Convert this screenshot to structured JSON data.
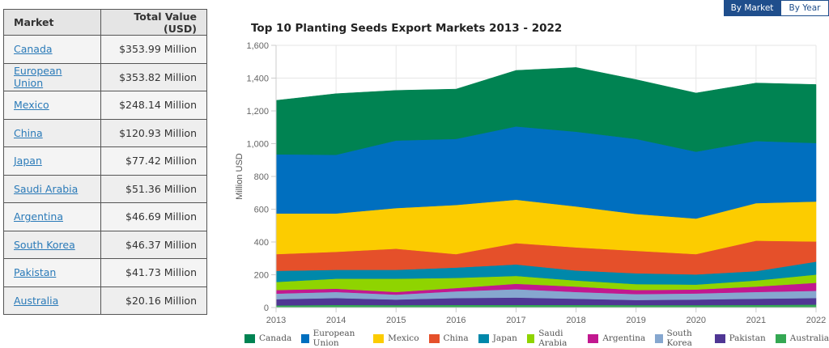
{
  "toggle": {
    "by_market": "By Market",
    "by_year": "By Year",
    "active": "By Market"
  },
  "table": {
    "headers": [
      "Market",
      "Total Value (USD)"
    ],
    "rows": [
      {
        "market": "Canada",
        "value": "$353.99 Million"
      },
      {
        "market": "European Union",
        "value": "$353.82 Million"
      },
      {
        "market": "Mexico",
        "value": "$248.14 Million"
      },
      {
        "market": "China",
        "value": "$120.93 Million"
      },
      {
        "market": "Japan",
        "value": "$77.42 Million"
      },
      {
        "market": "Saudi Arabia",
        "value": "$51.36 Million"
      },
      {
        "market": "Argentina",
        "value": "$46.69 Million"
      },
      {
        "market": "South Korea",
        "value": "$46.37 Million"
      },
      {
        "market": "Pakistan",
        "value": "$41.73 Million"
      },
      {
        "market": "Australia",
        "value": "$20.16 Million"
      }
    ]
  },
  "chart_data": {
    "type": "area",
    "stacked": true,
    "title": "Top 10 Planting Seeds Export Markets 2013 - 2022",
    "xlabel": "",
    "ylabel": "Million USD",
    "x": [
      2013,
      2014,
      2015,
      2016,
      2017,
      2018,
      2019,
      2020,
      2021,
      2022
    ],
    "x_tick_labels": [
      "2013",
      "2014",
      "2015",
      "2016",
      "2017",
      "2018",
      "2019",
      "2020",
      "2021",
      "2022"
    ],
    "ylim": [
      0,
      1600
    ],
    "y_ticks": [
      0,
      200,
      400,
      600,
      800,
      1000,
      1200,
      1400,
      1600
    ],
    "y_tick_labels": [
      "0",
      "200",
      "400",
      "600",
      "800",
      "1,000",
      "1,200",
      "1,400",
      "1,600"
    ],
    "grid": true,
    "legend_position": "bottom",
    "series": [
      {
        "name": "Australia",
        "color": "#34a853",
        "values": [
          13,
          16,
          15,
          16,
          16,
          16,
          15,
          15,
          16,
          18
        ]
      },
      {
        "name": "Pakistan",
        "color": "#4f3694",
        "values": [
          38,
          42,
          34,
          42,
          45,
          38,
          31,
          34,
          38,
          40
        ]
      },
      {
        "name": "South Korea",
        "color": "#86a7cf",
        "values": [
          34,
          37,
          30,
          41,
          51,
          41,
          36,
          37,
          41,
          44
        ]
      },
      {
        "name": "Argentina",
        "color": "#c2188f",
        "values": [
          22,
          20,
          16,
          20,
          33,
          33,
          25,
          24,
          33,
          49
        ]
      },
      {
        "name": "Saudi Arabia",
        "color": "#8fd400",
        "values": [
          49,
          61,
          81,
          62,
          48,
          37,
          36,
          30,
          37,
          50
        ]
      },
      {
        "name": "Japan",
        "color": "#0088aa",
        "values": [
          68,
          54,
          54,
          63,
          70,
          61,
          66,
          62,
          57,
          79
        ]
      },
      {
        "name": "China",
        "color": "#e5502a",
        "values": [
          102,
          110,
          129,
          82,
          130,
          141,
          137,
          124,
          186,
          123
        ]
      },
      {
        "name": "Mexico",
        "color": "#fccc00",
        "values": [
          248,
          234,
          248,
          300,
          265,
          250,
          225,
          217,
          229,
          244
        ]
      },
      {
        "name": "European Union",
        "color": "#006fbf",
        "values": [
          361,
          358,
          412,
          403,
          447,
          456,
          458,
          408,
          379,
          357
        ]
      },
      {
        "name": "Canada",
        "color": "#008352",
        "values": [
          329,
          373,
          306,
          304,
          342,
          392,
          362,
          358,
          354,
          357
        ]
      }
    ],
    "legend_order": [
      "Canada",
      "European Union",
      "Mexico",
      "China",
      "Japan",
      "Saudi Arabia",
      "Argentina",
      "South Korea",
      "Pakistan",
      "Australia"
    ]
  }
}
